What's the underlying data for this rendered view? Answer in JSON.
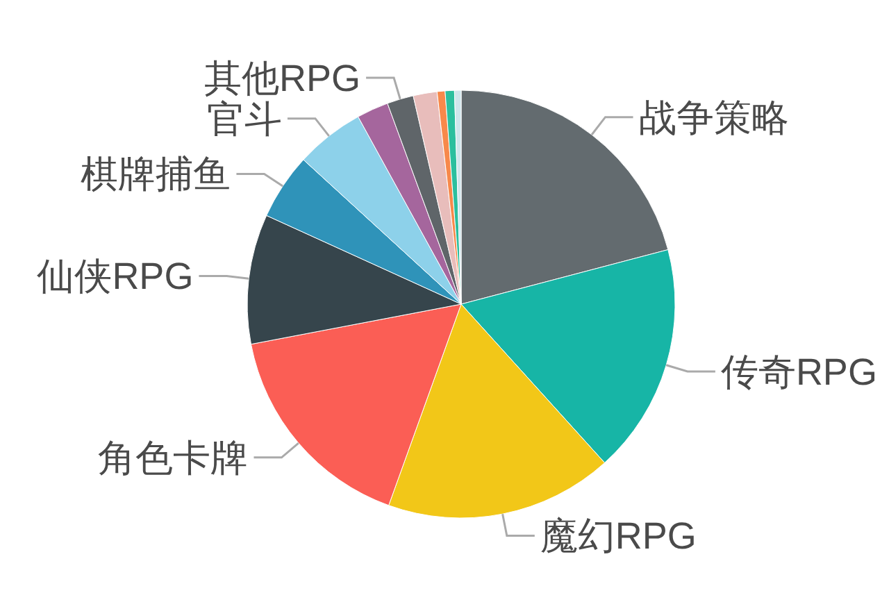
{
  "chart_data": {
    "type": "pie",
    "categories": [
      "战争策略",
      "传奇RPG",
      "魔幻RPG",
      "角色卡牌",
      "仙侠RPG",
      "棋牌捕鱼",
      "官斗",
      null,
      "其他RPG",
      null,
      null,
      null,
      null
    ],
    "values": [
      20.9,
      17.4,
      17.2,
      16.5,
      9.8,
      5.0,
      5.2,
      2.4,
      2.0,
      1.8,
      0.6,
      0.7,
      0.5
    ],
    "colors": [
      "#636b6f",
      "#17b5a6",
      "#f2c718",
      "#fb5e55",
      "#36454c",
      "#2f93b9",
      "#8dd1ea",
      "#a5669d",
      "#5f6569",
      "#e8bdbb",
      "#f7894b",
      "#2bbf9e",
      "#cfe6ec"
    ]
  }
}
